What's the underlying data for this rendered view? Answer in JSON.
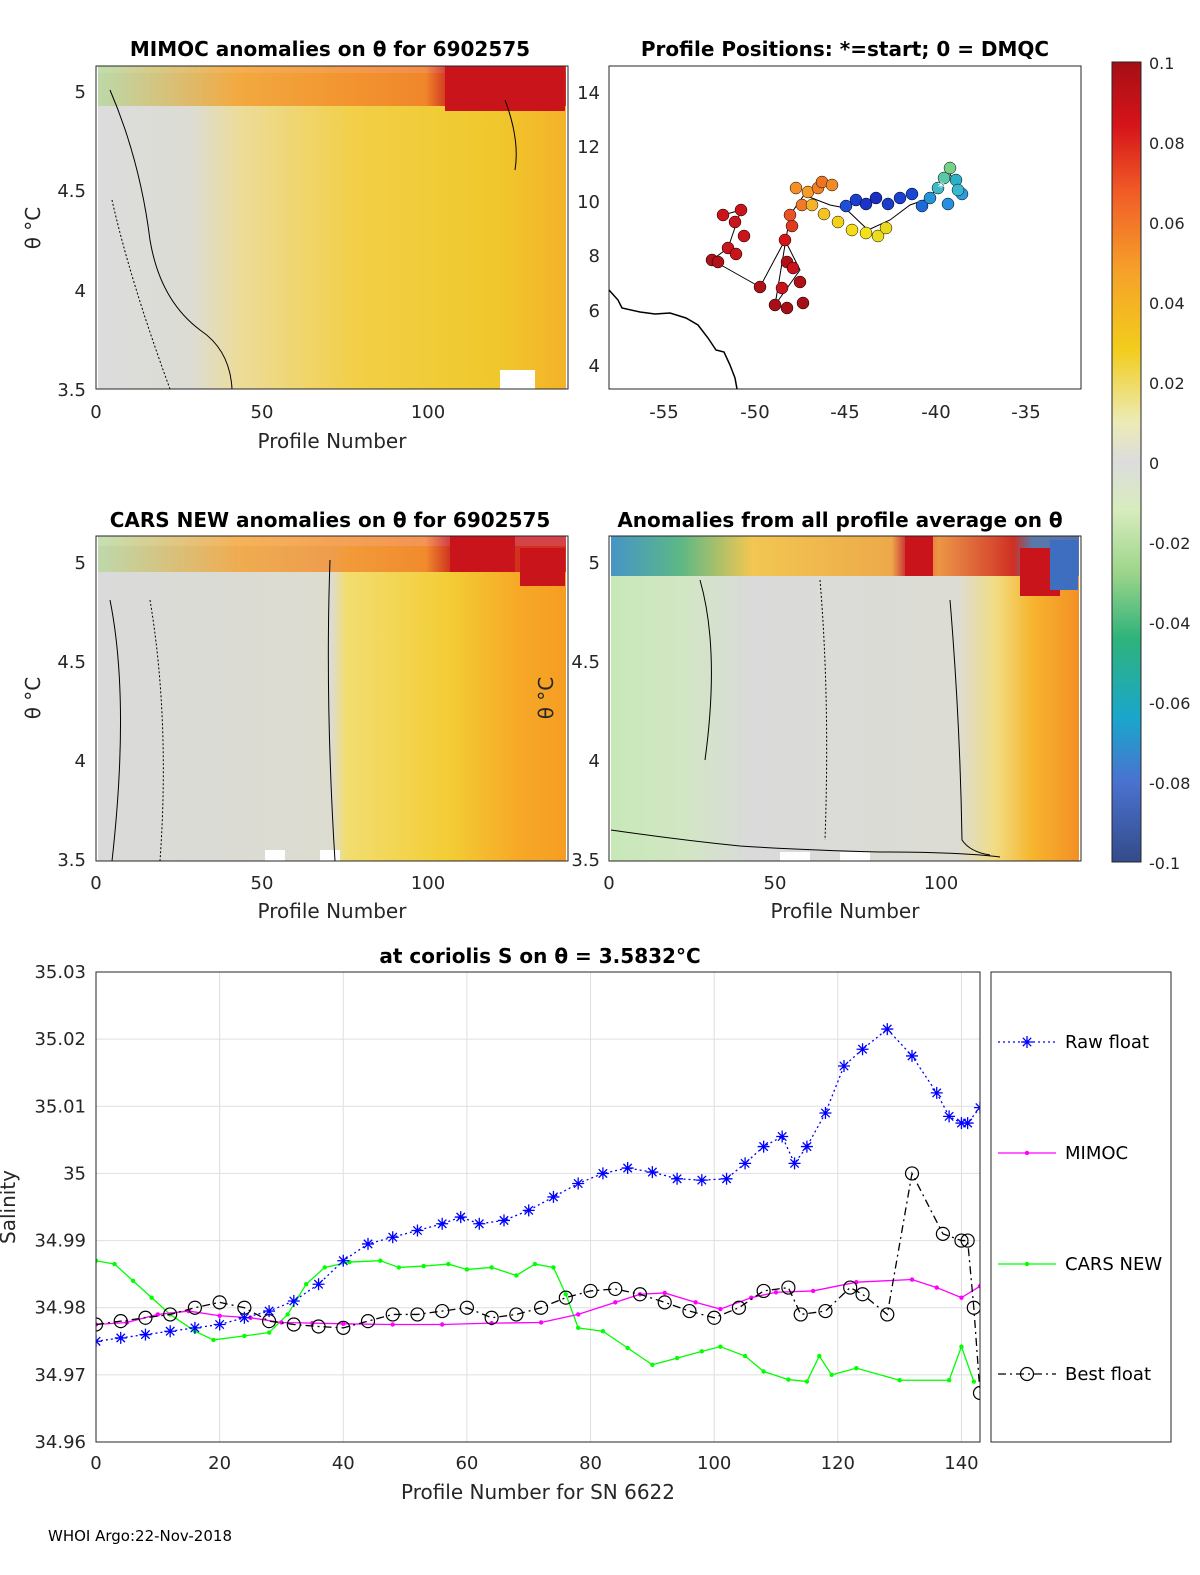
{
  "footer": "WHOI Argo:22-Nov-2018",
  "panels": {
    "mimoc": {
      "title": "MIMOC anomalies on θ  for 6902575",
      "ylabel": "θ °C",
      "xlabel": "Profile Number",
      "yticks": [
        "5",
        "4.5",
        "4",
        "3.5"
      ],
      "xticks": [
        "0",
        "50",
        "100"
      ]
    },
    "positions": {
      "title": "Profile Positions: *=start; 0 = DMQC",
      "yticks": [
        "14",
        "12",
        "10",
        "8",
        "6",
        "4"
      ],
      "xticks": [
        "-55",
        "-50",
        "-45",
        "-40",
        "-35"
      ]
    },
    "cars": {
      "title": "CARS NEW anomalies on θ for 6902575",
      "ylabel": "θ °C",
      "xlabel": "Profile Number",
      "yticks": [
        "5",
        "4.5",
        "4",
        "3.5"
      ],
      "xticks": [
        "0",
        "50",
        "100"
      ]
    },
    "allavg": {
      "title": "Anomalies from all profile average on θ",
      "ylabel": "θ °C",
      "xlabel": "Profile Number",
      "yticks": [
        "5",
        "4.5",
        "4",
        "3.5"
      ],
      "xticks": [
        "0",
        "50",
        "100"
      ]
    }
  },
  "colorbar": {
    "ticks": [
      "0.1",
      "0.08",
      "0.06",
      "0.04",
      "0.02",
      "0",
      "-0.02",
      "-0.04",
      "-0.06",
      "-0.08",
      "-0.1"
    ]
  },
  "chart_data": {
    "type": "line",
    "title": "at coriolis S on θ = 3.5832°C",
    "xlabel": "Profile Number for SN 6622",
    "ylabel": "Salinity",
    "xlim": [
      0,
      143
    ],
    "ylim": [
      34.96,
      35.03
    ],
    "xticks": [
      0,
      20,
      40,
      60,
      80,
      100,
      120,
      140
    ],
    "yticks": [
      34.96,
      34.97,
      34.98,
      34.99,
      35,
      35.01,
      35.02,
      35.03
    ],
    "ytick_labels": [
      "34.96",
      "34.97",
      "34.98",
      "34.99",
      "35",
      "35.01",
      "35.02",
      "35.03"
    ],
    "grid": true,
    "legend_position": "right-outside",
    "series": [
      {
        "name": "Raw float",
        "color": "#0000ff",
        "marker": "asterisk",
        "linestyle": "dotted",
        "points": [
          [
            0,
            34.975
          ],
          [
            4,
            34.9755
          ],
          [
            8,
            34.976
          ],
          [
            12,
            34.9765
          ],
          [
            16,
            34.977
          ],
          [
            20,
            34.9775
          ],
          [
            24,
            34.9785
          ],
          [
            28,
            34.9795
          ],
          [
            32,
            34.981
          ],
          [
            36,
            34.9835
          ],
          [
            40,
            34.987
          ],
          [
            44,
            34.9895
          ],
          [
            48,
            34.9905
          ],
          [
            52,
            34.9915
          ],
          [
            56,
            34.9925
          ],
          [
            59,
            34.9935
          ],
          [
            62,
            34.9925
          ],
          [
            66,
            34.993
          ],
          [
            70,
            34.9945
          ],
          [
            74,
            34.9965
          ],
          [
            78,
            34.9985
          ],
          [
            82,
            35.0
          ],
          [
            86,
            35.0008
          ],
          [
            90,
            35.0002
          ],
          [
            94,
            34.9992
          ],
          [
            98,
            34.999
          ],
          [
            102,
            34.9992
          ],
          [
            105,
            35.0015
          ],
          [
            108,
            35.004
          ],
          [
            111,
            35.0055
          ],
          [
            113,
            35.0015
          ],
          [
            115,
            35.004
          ],
          [
            118,
            35.009
          ],
          [
            121,
            35.016
          ],
          [
            124,
            35.0185
          ],
          [
            128,
            35.0215
          ],
          [
            132,
            35.0175
          ],
          [
            136,
            35.012
          ],
          [
            138,
            35.0085
          ],
          [
            140,
            35.0075
          ],
          [
            141,
            35.0075
          ],
          [
            143,
            35.0098
          ]
        ]
      },
      {
        "name": "MIMOC",
        "color": "#ff00ff",
        "marker": "dot",
        "linestyle": "solid",
        "points": [
          [
            0,
            34.9775
          ],
          [
            5,
            34.9778
          ],
          [
            10,
            34.979
          ],
          [
            15,
            34.9795
          ],
          [
            20,
            34.9788
          ],
          [
            25,
            34.9785
          ],
          [
            30,
            34.9778
          ],
          [
            35,
            34.9777
          ],
          [
            40,
            34.9776
          ],
          [
            48,
            34.9775
          ],
          [
            56,
            34.9775
          ],
          [
            64,
            34.9777
          ],
          [
            72,
            34.9778
          ],
          [
            78,
            34.979
          ],
          [
            84,
            34.9808
          ],
          [
            88,
            34.982
          ],
          [
            92,
            34.9822
          ],
          [
            97,
            34.9808
          ],
          [
            101,
            34.9798
          ],
          [
            106,
            34.9815
          ],
          [
            110,
            34.9823
          ],
          [
            116,
            34.9825
          ],
          [
            123,
            34.9838
          ],
          [
            132,
            34.9842
          ],
          [
            136,
            34.983
          ],
          [
            140,
            34.9815
          ],
          [
            143,
            34.9832
          ]
        ]
      },
      {
        "name": "CARS NEW",
        "color": "#00ff00",
        "marker": "dot",
        "linestyle": "solid",
        "points": [
          [
            0,
            34.987
          ],
          [
            3,
            34.9865
          ],
          [
            6,
            34.984
          ],
          [
            9,
            34.9815
          ],
          [
            12,
            34.979
          ],
          [
            16,
            34.9765
          ],
          [
            19,
            34.9752
          ],
          [
            24,
            34.9758
          ],
          [
            28,
            34.9763
          ],
          [
            31,
            34.979
          ],
          [
            34,
            34.9835
          ],
          [
            37,
            34.986
          ],
          [
            41,
            34.9868
          ],
          [
            46,
            34.987
          ],
          [
            49,
            34.986
          ],
          [
            53,
            34.9862
          ],
          [
            57,
            34.9865
          ],
          [
            60,
            34.9857
          ],
          [
            64,
            34.986
          ],
          [
            68,
            34.9848
          ],
          [
            71,
            34.9865
          ],
          [
            74,
            34.986
          ],
          [
            76,
            34.982
          ],
          [
            78,
            34.977
          ],
          [
            82,
            34.9765
          ],
          [
            86,
            34.974
          ],
          [
            90,
            34.9715
          ],
          [
            94,
            34.9725
          ],
          [
            98,
            34.9735
          ],
          [
            101,
            34.9742
          ],
          [
            105,
            34.9728
          ],
          [
            108,
            34.9705
          ],
          [
            112,
            34.9693
          ],
          [
            115,
            34.969
          ],
          [
            117,
            34.9728
          ],
          [
            119,
            34.97
          ],
          [
            123,
            34.971
          ],
          [
            130,
            34.9692
          ],
          [
            138,
            34.9692
          ],
          [
            140,
            34.9742
          ],
          [
            142,
            34.969
          ]
        ]
      },
      {
        "name": "Best float",
        "color": "#000000",
        "marker": "circle",
        "linestyle": "dashdot",
        "points": [
          [
            0,
            34.9775
          ],
          [
            4,
            34.978
          ],
          [
            8,
            34.9785
          ],
          [
            12,
            34.979
          ],
          [
            16,
            34.98
          ],
          [
            20,
            34.9808
          ],
          [
            24,
            34.98
          ],
          [
            28,
            34.978
          ],
          [
            32,
            34.9775
          ],
          [
            36,
            34.9772
          ],
          [
            40,
            34.977
          ],
          [
            44,
            34.978
          ],
          [
            48,
            34.979
          ],
          [
            52,
            34.979
          ],
          [
            56,
            34.9795
          ],
          [
            60,
            34.98
          ],
          [
            64,
            34.9785
          ],
          [
            68,
            34.979
          ],
          [
            72,
            34.98
          ],
          [
            76,
            34.9815
          ],
          [
            80,
            34.9825
          ],
          [
            84,
            34.9828
          ],
          [
            88,
            34.982
          ],
          [
            92,
            34.9808
          ],
          [
            96,
            34.9795
          ],
          [
            100,
            34.9785
          ],
          [
            104,
            34.98
          ],
          [
            108,
            34.9825
          ],
          [
            112,
            34.983
          ],
          [
            114,
            34.979
          ],
          [
            118,
            34.9795
          ],
          [
            122,
            34.983
          ],
          [
            124,
            34.982
          ],
          [
            128,
            34.979
          ],
          [
            132,
            35.0
          ],
          [
            137,
            34.991
          ],
          [
            140,
            34.99
          ],
          [
            141,
            34.99
          ],
          [
            142,
            34.98
          ],
          [
            143,
            34.9673
          ]
        ]
      }
    ]
  }
}
